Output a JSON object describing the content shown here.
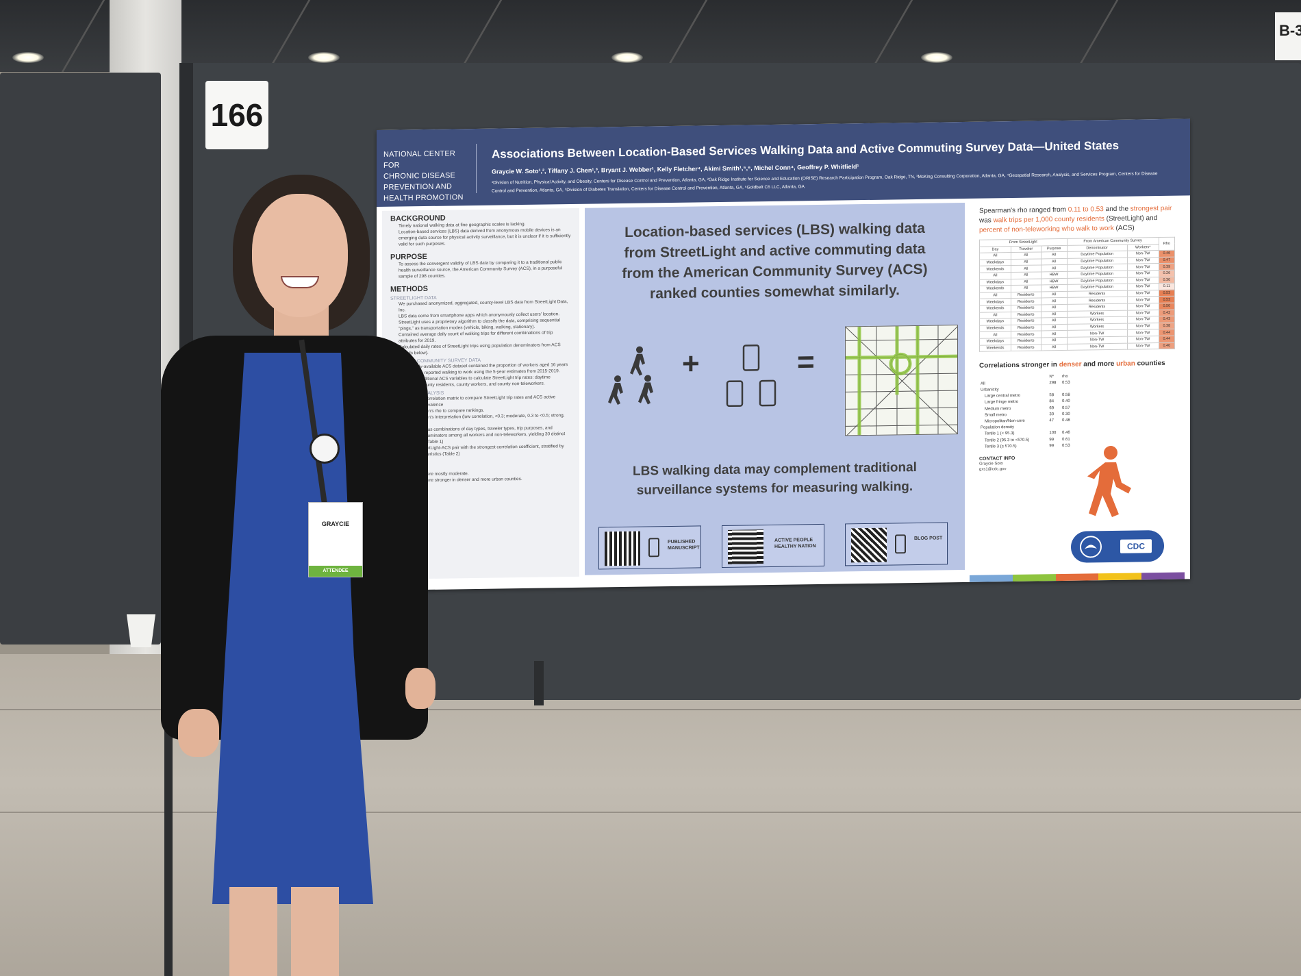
{
  "booth": {
    "number": "166",
    "neighbor_sign": "B-3"
  },
  "poster": {
    "organization_lines": [
      "NATIONAL CENTER FOR",
      "CHRONIC DISEASE",
      "PREVENTION AND",
      "HEALTH PROMOTION"
    ],
    "title": "Associations Between Location-Based Services Walking Data and Active Commuting Survey Data—United States",
    "authors": "Graycie W. Soto¹,², Tiffany J. Chen¹,³, Bryant J. Webber¹, Kelly Fletcher⁴, Akimi Smith¹,⁵,⁶, Michel Conn⁴, Geoffrey P. Whitfield¹",
    "affiliations": "¹Division of Nutrition, Physical Activity, and Obesity, Centers for Disease Control and Prevention, Atlanta, GA, ²Oak Ridge Institute for Science and Education (ORISE) Research Participation Program, Oak Ridge, TN, ³McKing Consulting Corporation, Atlanta, GA, ⁴Geospatial Research, Analysis, and Services Program, Centers for Disease Control and Prevention, Atlanta, GA, ⁵Division of Diabetes Translation, Centers for Disease Control and Prevention, Atlanta, GA, ⁶Goldbelt C6 LLC, Atlanta, GA",
    "left_column": {
      "background_heading": "BACKGROUND",
      "background_bullets": [
        "Timely national walking data at fine geographic scales is lacking.",
        "Location-based services (LBS) data derived from anonymous mobile devices is an emerging data source for physical activity surveillance, but it is unclear if it is sufficiently valid for such purposes."
      ],
      "purpose_heading": "PURPOSE",
      "purpose_bullets": [
        "To assess the convergent validity of LBS data by comparing it to a traditional public health surveillance source, the American Community Survey (ACS), in a purposeful sample of 298 counties."
      ],
      "methods_heading": "METHODS",
      "streetlight_sub": "STREETLIGHT DATA",
      "streetlight_bullets": [
        "We purchased anonymized, aggregated, county-level LBS data from StreetLight Data, Inc.",
        "LBS data come from smartphone apps which anonymously collect users' location.",
        "StreetLight uses a proprietary algorithm to classify the data, comprising sequential \"pings,\" as transportation modes (vehicle, biking, walking, stationary).",
        "Contained average daily count of walking trips for different combinations of trip attributes for 2019.",
        "Calculated daily rates of StreetLight trips using population denominators from ACS (details below)."
      ],
      "acs_sub": "AMERICAN COMMUNITY SURVEY DATA",
      "acs_bullets": [
        "The publicly-available ACS dataset contained the proportion of workers aged 16 years or older who reported walking to work using the 5-year estimates from 2015-2019.",
        "Used four additional ACS variables to calculate StreetLight trip rates: daytime population, county residents, county workers, and county non-teleworkers."
      ],
      "analysis_sub": "STATISTICAL ANALYSIS",
      "analysis_bullets": [
        "Developed a correlation matrix to compare StreetLight trip rates and ACS active commuting prevalence",
        "Used Spearman's rho to compare rankings.",
        "Followed Cohen's interpretation (low correlation, <0.3; moderate, 0.3 to <0.5; strong, ≥0.5).",
        "Analyzed various combinations of day types, traveler types, trip purposes, and population denominators among all workers and non-teleworkers, yielding 30 distinct combinations (Table 1)",
        "Using the StreetLight-ACS pair with the strongest correlation coefficient, stratified by county characteristics (Table 2)"
      ],
      "results_heading": "RESULTS",
      "results_bullets": [
        "Correlations were mostly moderate.",
        "Correlations were stronger in denser and more urban counties."
      ]
    },
    "middle_column": {
      "headline_1": "Location-based services (LBS) walking data from StreetLight and active commuting data from the American Community Survey (ACS) ranked counties somewhat similarly.",
      "plus": "+",
      "equals": "=",
      "headline_2": "LBS walking data may complement traditional surveillance systems for measuring walking.",
      "qr_cards": [
        {
          "label": "PUBLISHED MANUSCRIPT"
        },
        {
          "label": "ACTIVE PEOPLE HEALTHY NATION"
        },
        {
          "label": "BLOG POST"
        }
      ]
    },
    "right_column": {
      "intro_parts": [
        "Spearman's rho ranged from ",
        "0.11 to 0.53",
        " and the ",
        "strongest pair",
        " was ",
        "walk trips per 1,000 county residents",
        " (StreetLight) and ",
        "percent of non-teleworking who walk to work",
        " (ACS)"
      ],
      "table1_group_headers": [
        "From StreetLight",
        "From American Community Survey",
        "Rho"
      ],
      "table1_headers": [
        "Day",
        "Traveler",
        "Purpose",
        "Denominator",
        "Workers*"
      ],
      "table1_rows": [
        [
          "All",
          "All",
          "All",
          "Daytime Population",
          "Non-TW",
          "0.46"
        ],
        [
          "Weekdays",
          "All",
          "All",
          "Daytime Population",
          "Non-TW",
          "0.47"
        ],
        [
          "Weekends",
          "All",
          "All",
          "Daytime Population",
          "Non-TW",
          "0.39"
        ],
        [
          "All",
          "All",
          "HBW",
          "Daytime Population",
          "Non-TW",
          "0.26"
        ],
        [
          "Weekdays",
          "All",
          "HBW",
          "Daytime Population",
          "Non-TW",
          "0.30"
        ],
        [
          "Weekends",
          "All",
          "HBW",
          "Daytime Population",
          "Non-TW",
          "0.11"
        ],
        [
          "All",
          "Residents",
          "All",
          "Residents",
          "Non-TW",
          "0.53"
        ],
        [
          "Weekdays",
          "Residents",
          "All",
          "Residents",
          "Non-TW",
          "0.53"
        ],
        [
          "Weekends",
          "Residents",
          "All",
          "Residents",
          "Non-TW",
          "0.50"
        ],
        [
          "All",
          "Residents",
          "All",
          "Workers",
          "Non-TW",
          "0.42"
        ],
        [
          "Weekdays",
          "Residents",
          "All",
          "Workers",
          "Non-TW",
          "0.43"
        ],
        [
          "Weekends",
          "Residents",
          "All",
          "Workers",
          "Non-TW",
          "0.38"
        ],
        [
          "All",
          "Residents",
          "All",
          "Non-TW",
          "Non-TW",
          "0.44"
        ],
        [
          "Weekdays",
          "Residents",
          "All",
          "Non-TW",
          "Non-TW",
          "0.44"
        ],
        [
          "Weekends",
          "Residents",
          "All",
          "Non-TW",
          "Non-TW",
          "0.40"
        ]
      ],
      "subhead_parts": [
        "Correlations stronger in ",
        "denser",
        " and more ",
        "urban",
        " counties"
      ],
      "table2_headers": [
        "",
        "N*",
        "rho"
      ],
      "table2_rows": [
        [
          "All",
          "298",
          "0.53"
        ],
        [
          "Urbanicity",
          "",
          ""
        ],
        [
          "Large central metro",
          "58",
          "0.58"
        ],
        [
          "Large fringe metro",
          "84",
          "0.40"
        ],
        [
          "Medium metro",
          "69",
          "0.57"
        ],
        [
          "Small metro",
          "30",
          "0.30"
        ],
        [
          "Micropolitan/Non-core",
          "47",
          "0.48"
        ],
        [
          "Population density",
          "",
          ""
        ],
        [
          "Tertile 1 (< 95.3)",
          "100",
          "0.46"
        ],
        [
          "Tertile 2 (95.3 to <570.5)",
          "99",
          "0.61"
        ],
        [
          "Tertile 3 (≥ 570.5)",
          "99",
          "0.53"
        ]
      ],
      "contact_heading": "CONTACT INFO",
      "contact_lines": [
        "Graycie Soto",
        "gxs1@cdc.gov"
      ],
      "cdc_logo_text": "CDC"
    },
    "accent_colors": {
      "header": "#3f4f7c",
      "orange": "#e46c3a",
      "panel_blue": "#b8c4e4"
    }
  },
  "badge": {
    "name": "GRAYCIE",
    "role": "ATTENDEE"
  }
}
